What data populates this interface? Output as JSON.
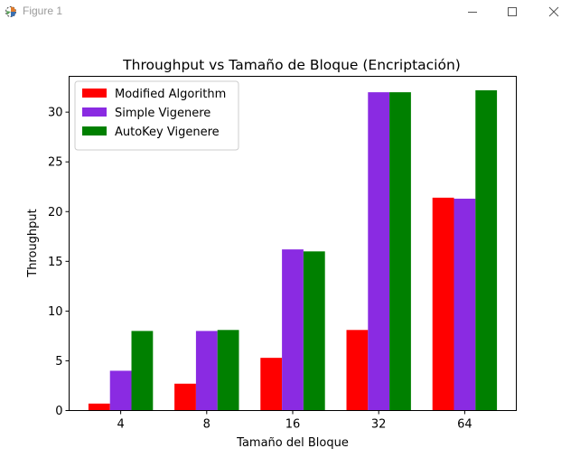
{
  "window": {
    "title": "Figure 1",
    "icon": "matplotlib-figure-icon",
    "controls": [
      "minimize-icon",
      "maximize-icon",
      "close-icon"
    ]
  },
  "chart_data": {
    "type": "bar",
    "title": "Throughput vs Tamaño de Bloque (Encriptación)",
    "xlabel": "Tamaño del Bloque",
    "ylabel": "Throughput",
    "categories": [
      "4",
      "8",
      "16",
      "32",
      "64"
    ],
    "series": [
      {
        "name": "Modified Algorithm",
        "color": "#ff0000",
        "values": [
          0.7,
          2.7,
          5.3,
          8.1,
          21.4
        ]
      },
      {
        "name": "Simple Vigenere",
        "color": "#8a2be2",
        "values": [
          4.0,
          8.0,
          16.2,
          32.0,
          21.3
        ]
      },
      {
        "name": "AutoKey Vigenere",
        "color": "#008000",
        "values": [
          8.0,
          8.1,
          16.0,
          32.0,
          32.2
        ]
      }
    ],
    "yticks": [
      0,
      5,
      10,
      15,
      20,
      25,
      30
    ],
    "ylim": [
      0,
      33.6
    ],
    "legend_position": "upper-left",
    "grid": false
  }
}
